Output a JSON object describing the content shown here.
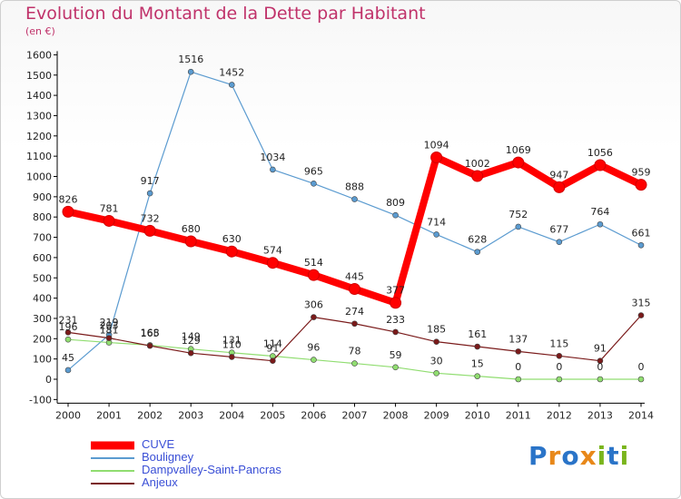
{
  "title": "Evolution du Montant de la Dette par Habitant",
  "subtitle": "(en €)",
  "logo": "Proxiti",
  "chart_data": {
    "type": "line",
    "x": [
      "2000",
      "2001",
      "2002",
      "2003",
      "2004",
      "2005",
      "2006",
      "2007",
      "2008",
      "2009",
      "2010",
      "2011",
      "2012",
      "2013",
      "2014"
    ],
    "y_ticks": [
      "-100",
      "0",
      "100",
      "200",
      "300",
      "400",
      "500",
      "600",
      "700",
      "800",
      "900",
      "1000",
      "1100",
      "1200",
      "1300",
      "1400",
      "1500",
      "1600"
    ],
    "ylim": [
      -100,
      1600
    ],
    "grid": false,
    "legend_position": "bottom-left",
    "series": [
      {
        "name": "CUVE",
        "color": "#ff0000",
        "values": [
          826,
          781,
          732,
          680,
          630,
          574,
          514,
          445,
          377,
          1094,
          1002,
          1069,
          947,
          1056,
          959
        ],
        "labels": [
          "826",
          "781",
          "732",
          "680",
          "630",
          "574",
          "514",
          "445",
          "377",
          "1094",
          "1002",
          "1069",
          "947",
          "1056",
          "959"
        ]
      },
      {
        "name": "Bouligney",
        "color": "#5b9bd0",
        "values": [
          45,
          219,
          917,
          1516,
          1452,
          1034,
          965,
          888,
          809,
          714,
          628,
          752,
          677,
          764,
          661
        ],
        "labels": [
          "45",
          "219",
          "917",
          "1516",
          "1452",
          "1034",
          "965",
          "888",
          "809",
          "714",
          "628",
          "752",
          "677",
          "764",
          "661"
        ]
      },
      {
        "name": "Dampvalley-Saint-Pancras",
        "color": "#90dd70",
        "values": [
          196,
          181,
          168,
          149,
          131,
          114,
          96,
          78,
          59,
          30,
          15,
          0,
          0,
          0,
          0
        ],
        "labels": [
          "196",
          "181",
          "168",
          "149",
          "131",
          "114",
          "96",
          "78",
          "59",
          "30",
          "15",
          "0",
          "0",
          "0",
          "0"
        ]
      },
      {
        "name": "Anjeux",
        "color": "#7a1a1a",
        "values": [
          231,
          203,
          165,
          129,
          110,
          91,
          306,
          274,
          233,
          185,
          161,
          137,
          115,
          91,
          315
        ],
        "labels": [
          "231",
          "203",
          "165",
          "129",
          "110",
          "91",
          "306",
          "274",
          "233",
          "185",
          "161",
          "137",
          "115",
          "91",
          "315"
        ]
      }
    ]
  }
}
